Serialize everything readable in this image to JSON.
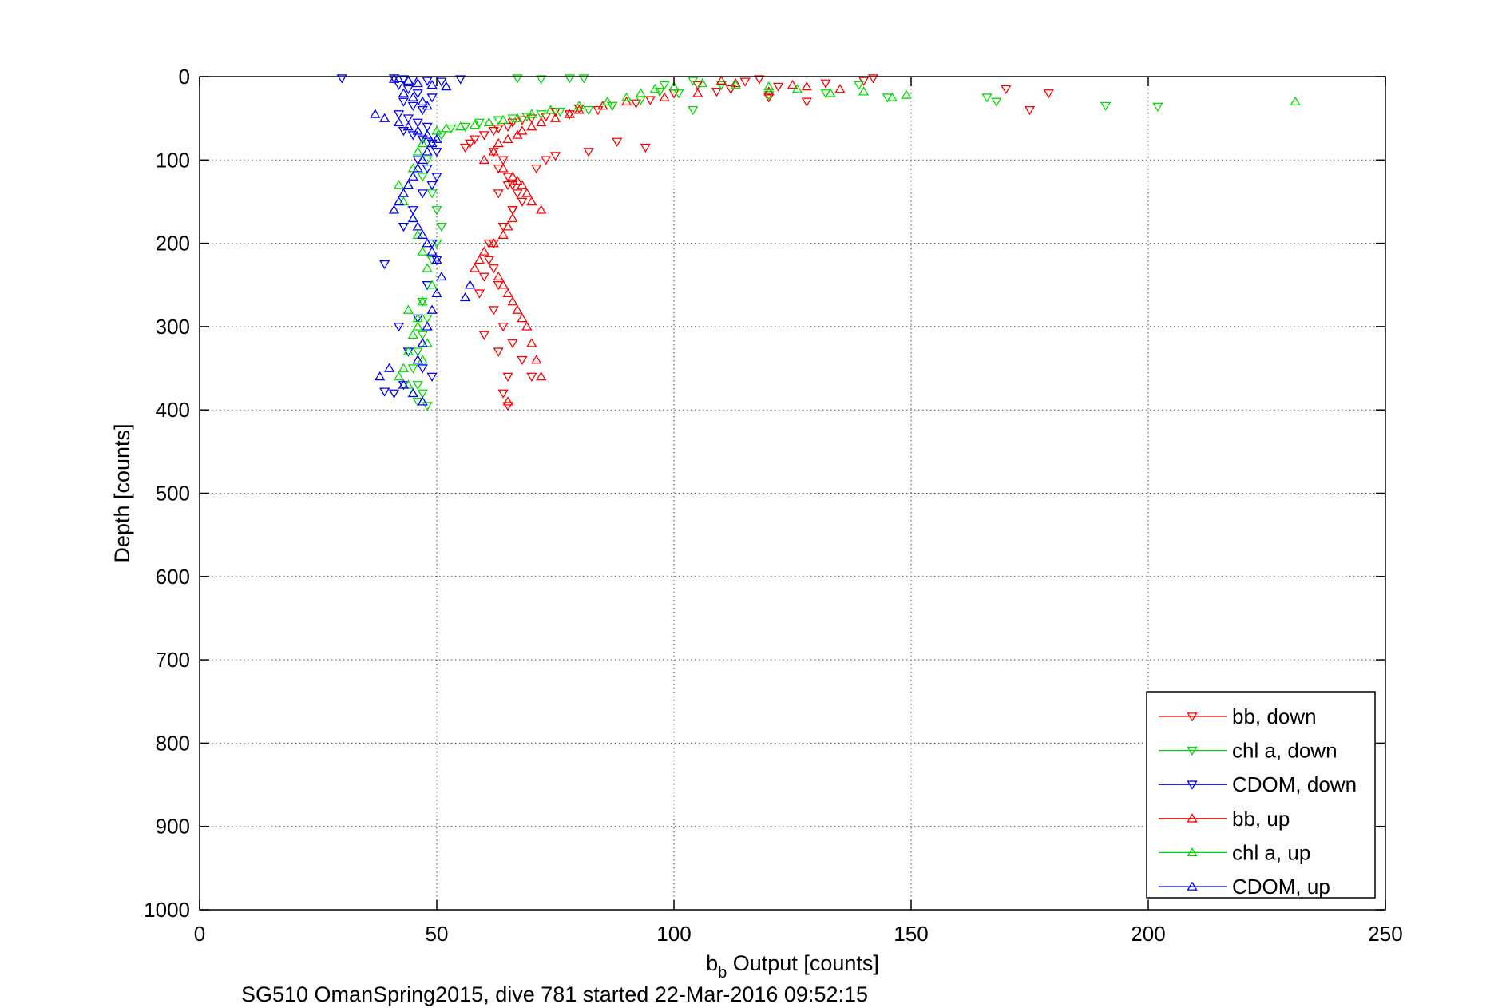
{
  "chart_data": {
    "type": "scatter",
    "xlabel": "b",
    "xlabel_sub": "b",
    "xlabel_rest": " Output [counts]",
    "ylabel": "Depth [counts]",
    "caption": "SG510 OmanSpring2015, dive 781 started 22-Mar-2016 09:52:15",
    "xlim": [
      0,
      250
    ],
    "ylim": [
      0,
      1000
    ],
    "y_reversed": true,
    "grid": true,
    "legend_position": "bottom-right",
    "xticks": [
      "0",
      "50",
      "100",
      "150",
      "200",
      "250"
    ],
    "yticks": [
      "0",
      "100",
      "200",
      "300",
      "400",
      "500",
      "600",
      "700",
      "800",
      "900",
      "1000"
    ],
    "series": [
      {
        "name": "bb, down",
        "color": "#ff0000",
        "marker": "triangle-down",
        "x": [
          142,
          140,
          132,
          122,
          118,
          115,
          112,
          109,
          105,
          100,
          95,
          92,
          87,
          84,
          80,
          78,
          75,
          73,
          70,
          68,
          66,
          65,
          63,
          62,
          60,
          58,
          57,
          56,
          62,
          64,
          63,
          65,
          66,
          67,
          68,
          66,
          64,
          62,
          61,
          60,
          59,
          62,
          64,
          66,
          68,
          70,
          170,
          175,
          179,
          128,
          120,
          94,
          88,
          82,
          75,
          73,
          71,
          65,
          63,
          66,
          61,
          62,
          63,
          60,
          63,
          65,
          64,
          65
        ],
        "y": [
          2,
          5,
          8,
          12,
          3,
          6,
          15,
          18,
          10,
          20,
          28,
          32,
          35,
          40,
          38,
          45,
          42,
          48,
          50,
          52,
          55,
          60,
          62,
          65,
          70,
          75,
          80,
          85,
          90,
          100,
          110,
          120,
          130,
          140,
          150,
          160,
          180,
          200,
          220,
          240,
          260,
          280,
          300,
          320,
          340,
          360,
          15,
          40,
          20,
          30,
          25,
          85,
          78,
          90,
          95,
          100,
          110,
          130,
          140,
          160,
          200,
          230,
          250,
          310,
          330,
          360,
          380,
          395
        ]
      },
      {
        "name": "chl a, down",
        "color": "#00dd00",
        "marker": "triangle-down",
        "x": [
          67,
          72,
          78,
          81,
          98,
          104,
          110,
          120,
          132,
          139,
          145,
          166,
          168,
          191,
          202,
          101,
          104,
          97,
          93,
          87,
          82,
          76,
          72,
          69,
          66,
          63,
          59,
          56,
          53,
          51,
          49,
          48,
          47,
          49,
          50,
          51,
          50,
          49,
          48,
          47,
          48,
          47,
          46,
          45,
          46,
          47,
          46,
          48
        ],
        "y": [
          2,
          3,
          2,
          2,
          10,
          5,
          10,
          22,
          20,
          10,
          25,
          25,
          30,
          35,
          36,
          20,
          40,
          18,
          28,
          35,
          40,
          42,
          45,
          48,
          50,
          52,
          55,
          60,
          62,
          70,
          80,
          100,
          120,
          140,
          160,
          180,
          200,
          220,
          250,
          270,
          290,
          310,
          330,
          350,
          370,
          380,
          390,
          395
        ]
      },
      {
        "name": "CDOM, down",
        "color": "#0000ff",
        "marker": "triangle-down",
        "x": [
          30,
          41,
          43,
          45,
          48,
          51,
          55,
          42,
          44,
          46,
          49,
          43,
          45,
          47,
          42,
          44,
          46,
          48,
          43,
          45,
          47,
          49,
          50,
          46,
          48,
          50,
          49,
          47,
          45,
          43,
          49,
          50,
          48,
          46,
          39,
          42,
          44,
          47,
          49,
          41,
          43,
          39
        ],
        "y": [
          2,
          2,
          3,
          4,
          5,
          6,
          3,
          10,
          15,
          20,
          25,
          30,
          35,
          40,
          45,
          50,
          55,
          60,
          65,
          70,
          75,
          80,
          90,
          100,
          110,
          120,
          130,
          140,
          160,
          180,
          200,
          220,
          250,
          290,
          225,
          300,
          330,
          350,
          360,
          380,
          370,
          378
        ]
      },
      {
        "name": "bb, up",
        "color": "#ff0000",
        "marker": "triangle-up",
        "x": [
          110,
          113,
          125,
          128,
          135,
          120,
          105,
          98,
          90,
          85,
          80,
          78,
          75,
          72,
          70,
          68,
          67,
          65,
          63,
          62,
          60,
          64,
          66,
          67,
          68,
          69,
          70,
          72,
          66,
          65,
          64,
          62,
          60,
          59,
          58,
          63,
          64,
          65,
          66,
          67,
          68,
          69,
          70,
          71,
          72,
          65
        ],
        "y": [
          5,
          8,
          10,
          12,
          15,
          18,
          20,
          25,
          30,
          35,
          40,
          45,
          50,
          55,
          60,
          65,
          70,
          75,
          80,
          90,
          100,
          110,
          120,
          125,
          130,
          140,
          150,
          160,
          170,
          180,
          190,
          200,
          210,
          220,
          230,
          240,
          250,
          260,
          270,
          280,
          290,
          300,
          320,
          340,
          360,
          390
        ]
      },
      {
        "name": "chl a, up",
        "color": "#00dd00",
        "marker": "triangle-up",
        "x": [
          231,
          149,
          146,
          140,
          133,
          126,
          120,
          113,
          106,
          100,
          96,
          93,
          90,
          86,
          80,
          74,
          70,
          67,
          64,
          61,
          58,
          55,
          52,
          50,
          48,
          47,
          46,
          45,
          44,
          43,
          42,
          45,
          46,
          47,
          48,
          49,
          47,
          46,
          45,
          44,
          43,
          42,
          44,
          45,
          47,
          48,
          46,
          44
        ],
        "y": [
          30,
          22,
          25,
          18,
          20,
          15,
          12,
          10,
          8,
          12,
          15,
          20,
          25,
          30,
          35,
          40,
          45,
          50,
          52,
          55,
          58,
          60,
          62,
          65,
          70,
          80,
          90,
          110,
          130,
          150,
          130,
          170,
          190,
          210,
          230,
          250,
          270,
          290,
          310,
          330,
          350,
          360,
          370,
          380,
          340,
          320,
          300,
          280
        ]
      },
      {
        "name": "CDOM, up",
        "color": "#0000ff",
        "marker": "triangle-up",
        "x": [
          41,
          44,
          46,
          49,
          52,
          43,
          45,
          47,
          48,
          37,
          39,
          42,
          44,
          46,
          48,
          50,
          49,
          48,
          47,
          46,
          45,
          44,
          43,
          42,
          41,
          45,
          46,
          47,
          48,
          49,
          50,
          51,
          50,
          49,
          48,
          47,
          46,
          40,
          38,
          43,
          45,
          47,
          57,
          56
        ],
        "y": [
          3,
          5,
          8,
          10,
          12,
          20,
          25,
          30,
          35,
          45,
          50,
          55,
          60,
          65,
          70,
          75,
          80,
          90,
          100,
          110,
          120,
          130,
          140,
          150,
          160,
          170,
          180,
          190,
          200,
          210,
          220,
          240,
          260,
          280,
          300,
          320,
          340,
          350,
          360,
          370,
          380,
          390,
          250,
          265
        ]
      }
    ]
  }
}
